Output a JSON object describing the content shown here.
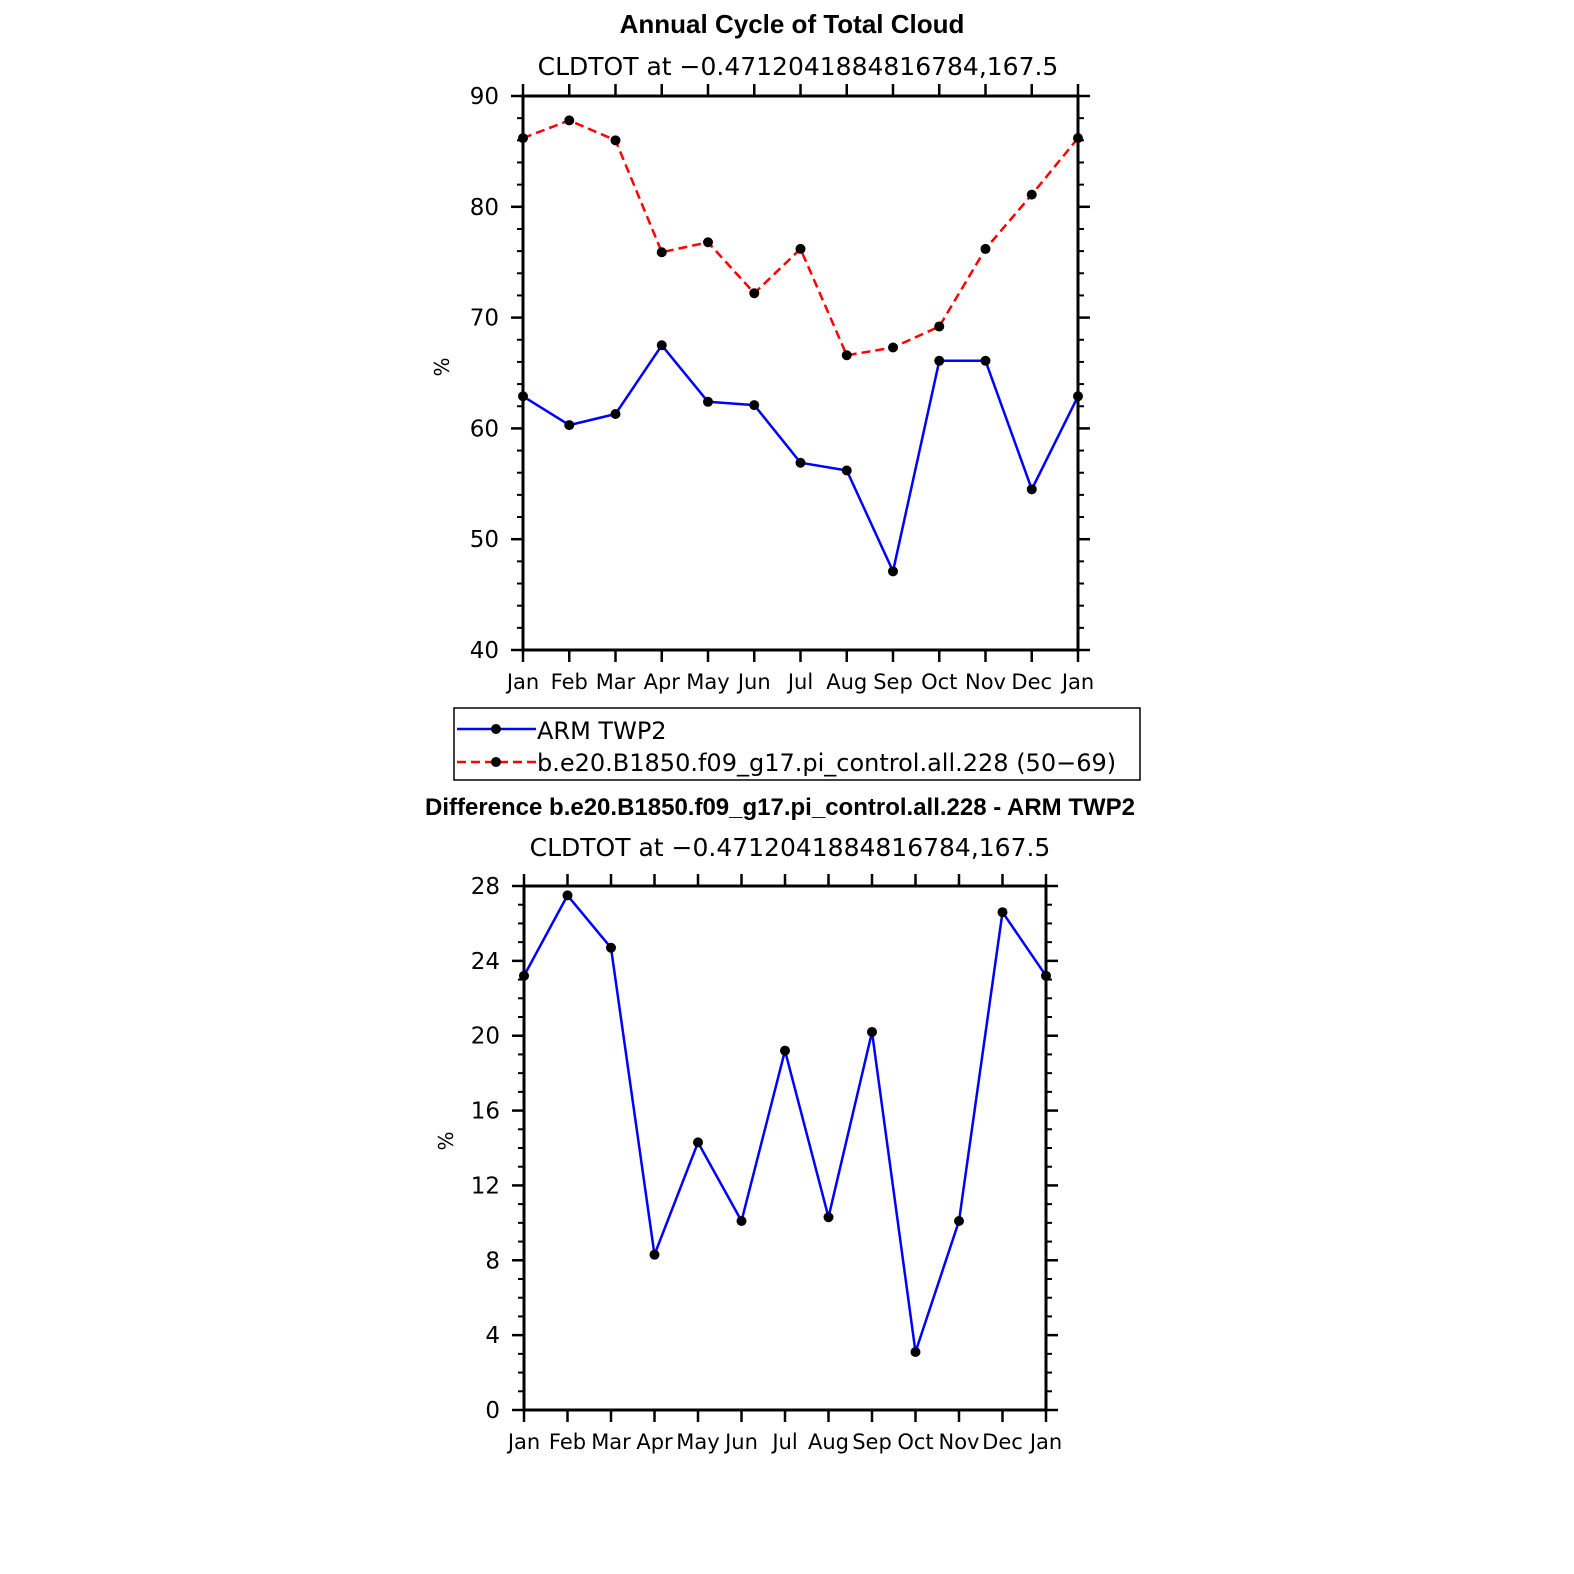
{
  "chart_data": [
    {
      "type": "line",
      "title": "Annual Cycle of Total Cloud",
      "subtitle": "CLDTOT at −0.4712041884816784,167.5",
      "xlabel": "",
      "ylabel": "%",
      "categories": [
        "Jan",
        "Feb",
        "Mar",
        "Apr",
        "May",
        "Jun",
        "Jul",
        "Aug",
        "Sep",
        "Oct",
        "Nov",
        "Dec",
        "Jan"
      ],
      "ylim": [
        40,
        90
      ],
      "yticks": [
        "40",
        "50",
        "60",
        "70",
        "80",
        "90"
      ],
      "series": [
        {
          "name": "ARM TWP2",
          "color": "#0000ff",
          "dash": "solid",
          "values": [
            62.9,
            60.3,
            61.3,
            67.5,
            62.4,
            62.1,
            56.9,
            56.2,
            47.1,
            66.1,
            66.1,
            54.5,
            62.9
          ]
        },
        {
          "name": "b.e20.B1850.f09_g17.pi_control.all.228 (50−69)",
          "color": "#ff0000",
          "dash": "dashed",
          "values": [
            86.2,
            87.8,
            86.0,
            75.9,
            76.8,
            72.2,
            76.2,
            66.6,
            67.3,
            69.2,
            76.2,
            81.1,
            86.2
          ]
        }
      ],
      "legend": "below"
    },
    {
      "type": "line",
      "title": "Difference b.e20.B1850.f09_g17.pi_control.all.228 - ARM TWP2",
      "subtitle": "CLDTOT at −0.4712041884816784,167.5",
      "xlabel": "",
      "ylabel": "%",
      "categories": [
        "Jan",
        "Feb",
        "Mar",
        "Apr",
        "May",
        "Jun",
        "Jul",
        "Aug",
        "Sep",
        "Oct",
        "Nov",
        "Dec",
        "Jan"
      ],
      "ylim": [
        0,
        28
      ],
      "yticks": [
        "0",
        "4",
        "8",
        "12",
        "16",
        "20",
        "24",
        "28"
      ],
      "series": [
        {
          "color": "#0000ff",
          "dash": "solid",
          "values": [
            23.2,
            27.5,
            24.7,
            8.3,
            14.3,
            10.1,
            19.2,
            10.3,
            20.2,
            3.1,
            10.1,
            26.6,
            23.2
          ]
        }
      ]
    }
  ]
}
